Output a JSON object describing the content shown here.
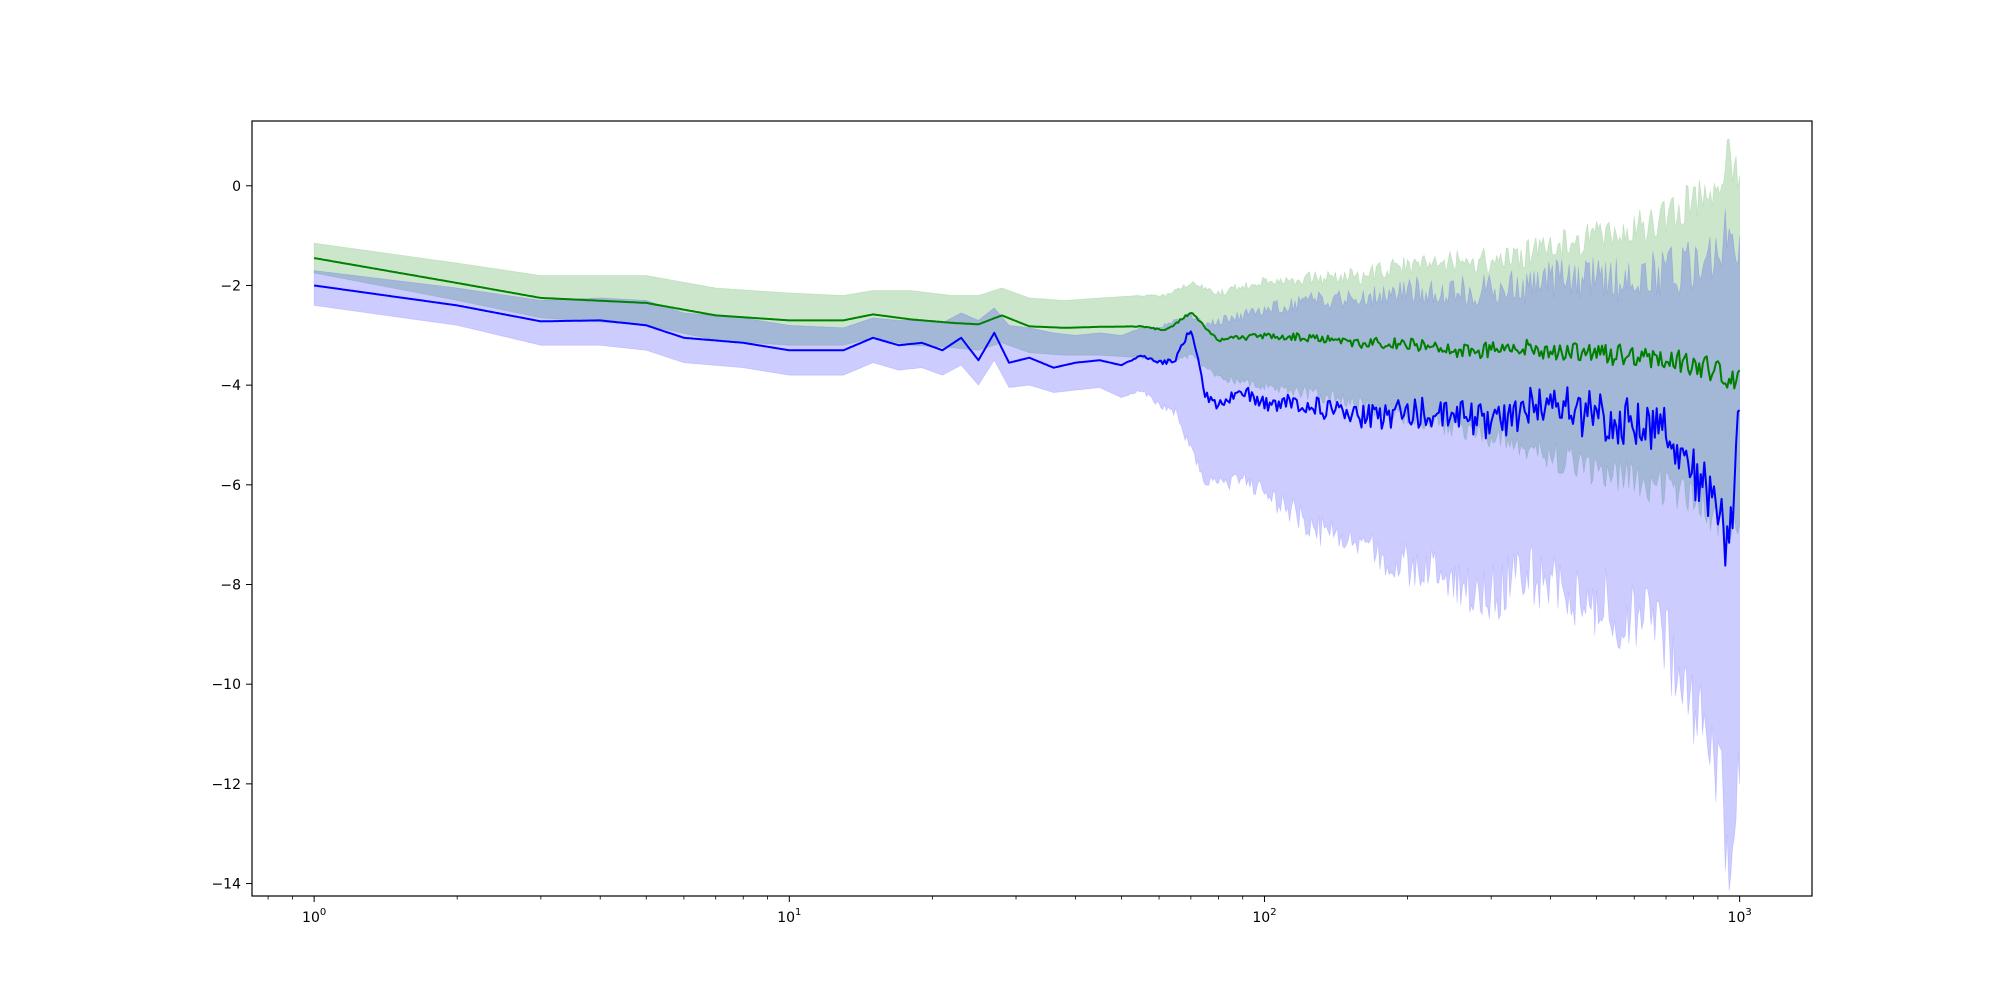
{
  "chart_data": {
    "type": "line",
    "title": "",
    "xlabel": "",
    "ylabel": "",
    "xscale": "log",
    "xlim": [
      0.74,
      1420
    ],
    "ylim": [
      -14.25,
      1.3
    ],
    "grid": false,
    "x_ticks": [
      {
        "value": 1,
        "base": "10",
        "exp": "0"
      },
      {
        "value": 10,
        "base": "10",
        "exp": "1"
      },
      {
        "value": 100,
        "base": "10",
        "exp": "2"
      },
      {
        "value": 1000,
        "base": "10",
        "exp": "3"
      }
    ],
    "y_ticks": [
      {
        "value": 0,
        "label": "0"
      },
      {
        "value": -2,
        "label": "−2"
      },
      {
        "value": -4,
        "label": "−4"
      },
      {
        "value": -6,
        "label": "−6"
      },
      {
        "value": -8,
        "label": "−8"
      },
      {
        "value": -10,
        "label": "−10"
      },
      {
        "value": -12,
        "label": "−12"
      },
      {
        "value": -14,
        "label": "−14"
      }
    ],
    "series": [
      {
        "color": "#008000",
        "band_color": "#008000",
        "band_opacity": 0.2,
        "x": [
          1,
          2,
          3,
          5,
          7,
          10,
          13,
          15,
          18,
          22,
          25,
          28,
          32,
          38,
          45,
          55,
          62,
          70,
          80,
          100,
          130,
          160,
          200,
          250,
          300,
          350,
          400,
          450,
          500,
          600,
          700,
          800,
          900,
          950,
          1000
        ],
        "mean": [
          -1.45,
          -1.95,
          -2.25,
          -2.35,
          -2.6,
          -2.7,
          -2.7,
          -2.58,
          -2.68,
          -2.75,
          -2.78,
          -2.6,
          -2.82,
          -2.85,
          -2.83,
          -2.82,
          -2.9,
          -2.55,
          -3.1,
          -3.0,
          -3.05,
          -3.15,
          -3.15,
          -3.3,
          -3.3,
          -3.25,
          -3.35,
          -3.3,
          -3.4,
          -3.4,
          -3.5,
          -3.55,
          -3.7,
          -4.0,
          -3.7
        ],
        "upper": [
          -1.15,
          -1.55,
          -1.8,
          -1.8,
          -2.05,
          -2.15,
          -2.2,
          -2.1,
          -2.1,
          -2.2,
          -2.2,
          -2.05,
          -2.25,
          -2.3,
          -2.25,
          -2.2,
          -2.2,
          -1.95,
          -2.15,
          -1.9,
          -1.85,
          -1.8,
          -1.6,
          -1.5,
          -1.5,
          -1.4,
          -1.25,
          -1.1,
          -1.0,
          -0.9,
          -0.6,
          -0.3,
          0.1,
          0.6,
          0.2
        ],
        "lower": [
          -1.75,
          -2.3,
          -2.65,
          -2.8,
          -3.1,
          -3.2,
          -3.2,
          -3.05,
          -3.2,
          -3.25,
          -3.3,
          -3.15,
          -3.35,
          -3.4,
          -3.4,
          -3.45,
          -3.55,
          -3.4,
          -3.85,
          -4.0,
          -4.2,
          -4.4,
          -4.6,
          -4.9,
          -5.0,
          -5.2,
          -5.4,
          -5.6,
          -5.7,
          -5.9,
          -6.1,
          -6.3,
          -6.6,
          -7.0,
          -6.8
        ]
      },
      {
        "color": "#0000ff",
        "band_color": "#0000ff",
        "band_opacity": 0.2,
        "x": [
          1,
          2,
          3,
          4,
          5,
          6,
          8,
          10,
          13,
          15,
          17,
          19,
          21,
          23,
          25,
          27,
          29,
          32,
          36,
          40,
          45,
          50,
          55,
          60,
          65,
          70,
          75,
          80,
          90,
          100,
          110,
          130,
          160,
          200,
          250,
          300,
          350,
          400,
          450,
          500,
          600,
          700,
          800,
          850,
          900,
          950,
          1000
        ],
        "mean": [
          -2.0,
          -2.4,
          -2.72,
          -2.7,
          -2.8,
          -3.05,
          -3.15,
          -3.3,
          -3.3,
          -3.05,
          -3.2,
          -3.15,
          -3.3,
          -3.05,
          -3.5,
          -2.95,
          -3.55,
          -3.45,
          -3.65,
          -3.55,
          -3.5,
          -3.6,
          -3.4,
          -3.55,
          -3.5,
          -2.85,
          -4.2,
          -4.4,
          -4.1,
          -4.4,
          -4.35,
          -4.45,
          -4.65,
          -4.55,
          -4.6,
          -4.75,
          -4.5,
          -4.35,
          -4.55,
          -4.6,
          -4.7,
          -4.8,
          -5.7,
          -6.0,
          -6.5,
          -7.4,
          -4.5
        ],
        "upper": [
          -1.7,
          -2.05,
          -2.3,
          -2.25,
          -2.3,
          -2.55,
          -2.65,
          -2.8,
          -2.85,
          -2.65,
          -2.7,
          -2.7,
          -2.75,
          -2.55,
          -2.7,
          -2.45,
          -2.8,
          -2.85,
          -2.95,
          -3.0,
          -2.95,
          -3.0,
          -2.85,
          -2.85,
          -2.7,
          -2.6,
          -2.8,
          -2.7,
          -2.6,
          -2.5,
          -2.4,
          -2.3,
          -2.2,
          -2.1,
          -2.1,
          -2.1,
          -2.0,
          -1.9,
          -1.8,
          -1.9,
          -1.8,
          -1.7,
          -1.6,
          -1.5,
          -1.3,
          -0.8,
          -1.0
        ],
        "lower": [
          -2.4,
          -2.8,
          -3.2,
          -3.2,
          -3.3,
          -3.55,
          -3.65,
          -3.8,
          -3.8,
          -3.55,
          -3.7,
          -3.65,
          -3.8,
          -3.6,
          -4.0,
          -3.5,
          -4.05,
          -4.0,
          -4.15,
          -4.1,
          -4.05,
          -4.25,
          -4.1,
          -4.4,
          -4.55,
          -5.3,
          -5.95,
          -6.0,
          -5.9,
          -6.2,
          -6.4,
          -6.9,
          -7.3,
          -7.6,
          -7.9,
          -8.2,
          -7.8,
          -8.0,
          -8.3,
          -8.3,
          -8.6,
          -9.3,
          -10.3,
          -11.0,
          -11.8,
          -13.3,
          -12.0
        ]
      }
    ]
  }
}
